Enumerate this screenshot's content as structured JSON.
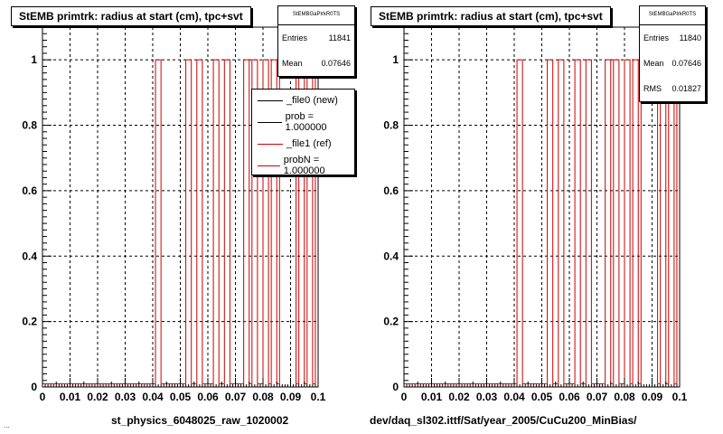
{
  "footer_text": "...",
  "colors": {
    "new": "#000000",
    "ref": "#cc0000",
    "grid": "#000000"
  },
  "left_panel": {
    "title": "StEMB primtrk: radius at start (cm), tpc+svt",
    "stats": {
      "header": "StEMBGaPlrkR0TS",
      "entries_label": "Entries",
      "entries_value": "11841",
      "mean_label": "Mean",
      "mean_value": "0.07646"
    },
    "legend": [
      {
        "label": "_file0 (new)",
        "color": "#000000"
      },
      {
        "label": "prob = 1.000000",
        "color": "#000000"
      },
      {
        "label": "_file1 (ref)",
        "color": "#cc0000"
      },
      {
        "label": "probN = 1.000000",
        "color": "#cc0000"
      }
    ],
    "file_label": "st_physics_6048025_raw_1020002"
  },
  "right_panel": {
    "title": "StEMB primtrk: radius at start (cm), tpc+svt",
    "stats": {
      "header": "StEMBGaPlrkR0TS",
      "entries_label": "Entries",
      "entries_value": "11840",
      "mean_label": "Mean",
      "mean_value": "0.07646",
      "rms_label": "RMS",
      "rms_value": "0.01827"
    },
    "file_label": "dev/daq_sl302.ittf/Sat/year_2005/CuCu200_MinBias/"
  },
  "chart_data": [
    {
      "type": "bar",
      "title": "StEMB primtrk: radius at start (cm), tpc+svt",
      "xlim": [
        0,
        0.1
      ],
      "ylim": [
        0,
        1.1
      ],
      "x_ticks": [
        "0",
        "0.01",
        "0.02",
        "0.03",
        "0.04",
        "0.05",
        "0.06",
        "0.07",
        "0.08",
        "0.09",
        "0.1"
      ],
      "y_ticks": [
        "0",
        "0.2",
        "0.4",
        "0.6",
        "0.8",
        "1"
      ],
      "grid": true,
      "legend_position": "top-right",
      "bin_width": 0.001,
      "baseline": 0.01,
      "series": [
        {
          "name": "_file1 (ref)",
          "color": "#cc0000",
          "bins_at_1": [
            0.041,
            0.042,
            0.052,
            0.053,
            0.056,
            0.057,
            0.062,
            0.063,
            0.066,
            0.067,
            0.073,
            0.074,
            0.076,
            0.077,
            0.08,
            0.081,
            0.083,
            0.084,
            0.086,
            0.087,
            0.088,
            0.089,
            0.09,
            0.091,
            0.093,
            0.094,
            0.096,
            0.097,
            0.099
          ]
        }
      ]
    },
    {
      "type": "bar",
      "title": "StEMB primtrk: radius at start (cm), tpc+svt",
      "xlim": [
        0,
        0.1
      ],
      "ylim": [
        0,
        1.1
      ],
      "x_ticks": [
        "0",
        "0.01",
        "0.02",
        "0.03",
        "0.04",
        "0.05",
        "0.06",
        "0.07",
        "0.08",
        "0.09",
        "0.1"
      ],
      "y_ticks": [
        "0",
        "0.2",
        "0.4",
        "0.6",
        "0.8",
        "1"
      ],
      "grid": true,
      "bin_width": 0.001,
      "baseline": 0.01,
      "series": [
        {
          "name": "_file1 (ref)",
          "color": "#cc0000",
          "bins_at_1": [
            0.041,
            0.042,
            0.052,
            0.053,
            0.056,
            0.057,
            0.062,
            0.063,
            0.066,
            0.067,
            0.073,
            0.074,
            0.076,
            0.077,
            0.08,
            0.081,
            0.083,
            0.084,
            0.086,
            0.087,
            0.088,
            0.089,
            0.09,
            0.091,
            0.093,
            0.094,
            0.096,
            0.097,
            0.099
          ]
        }
      ]
    }
  ]
}
